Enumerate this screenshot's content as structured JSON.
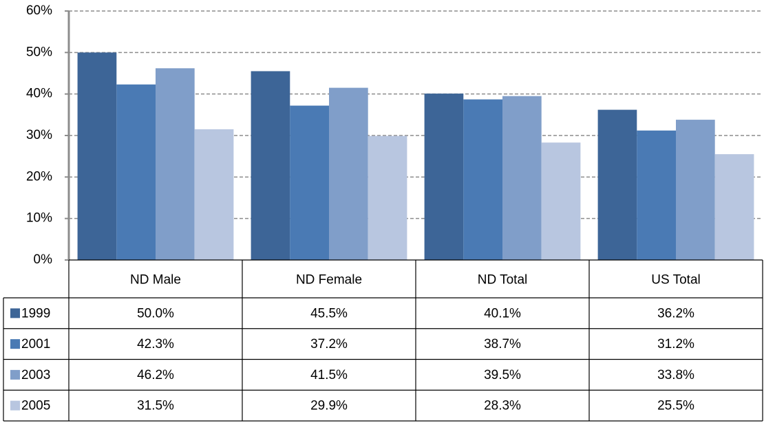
{
  "chart_data": {
    "type": "bar",
    "categories": [
      "ND Male",
      "ND Female",
      "ND Total",
      "US Total"
    ],
    "series": [
      {
        "name": "1999",
        "color": "#3d6597",
        "values": [
          50.0,
          45.5,
          40.1,
          36.2
        ],
        "value_labels": [
          "50.0%",
          "45.5%",
          "40.1%",
          "36.2%"
        ]
      },
      {
        "name": "2001",
        "color": "#4a7ab4",
        "values": [
          42.3,
          37.2,
          38.7,
          31.2
        ],
        "value_labels": [
          "42.3%",
          "37.2%",
          "38.7%",
          "31.2%"
        ]
      },
      {
        "name": "2003",
        "color": "#809ec9",
        "values": [
          46.2,
          41.5,
          39.5,
          33.8
        ],
        "value_labels": [
          "46.2%",
          "41.5%",
          "39.5%",
          "33.8%"
        ]
      },
      {
        "name": "2005",
        "color": "#b8c6e0",
        "values": [
          31.5,
          29.9,
          28.3,
          25.5
        ],
        "value_labels": [
          "31.5%",
          "29.9%",
          "28.3%",
          "25.5%"
        ]
      }
    ],
    "ylim": [
      0,
      60
    ],
    "yticks": [
      {
        "value": 0,
        "label": "0%"
      },
      {
        "value": 10,
        "label": "10%"
      },
      {
        "value": 20,
        "label": "20%"
      },
      {
        "value": 30,
        "label": "30%"
      },
      {
        "value": 40,
        "label": "40%"
      },
      {
        "value": 50,
        "label": "50%"
      },
      {
        "value": 60,
        "label": "60%"
      }
    ],
    "grid": true
  }
}
